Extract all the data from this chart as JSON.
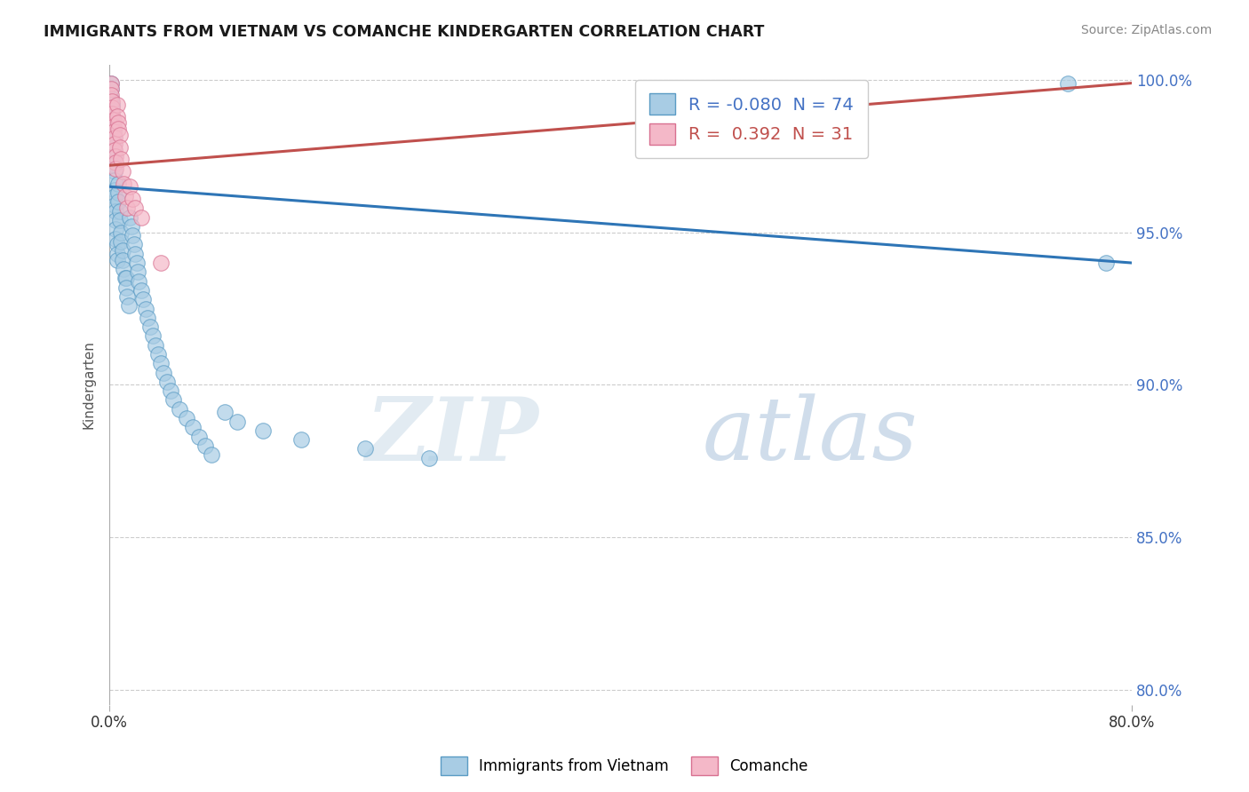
{
  "title": "IMMIGRANTS FROM VIETNAM VS COMANCHE KINDERGARTEN CORRELATION CHART",
  "source_text": "Source: ZipAtlas.com",
  "ylabel": "Kindergarten",
  "xlim": [
    0.0,
    0.8
  ],
  "ylim": [
    0.795,
    1.005
  ],
  "x_ticks": [
    0.0,
    0.8
  ],
  "x_tick_labels": [
    "0.0%",
    "80.0%"
  ],
  "y_ticks": [
    0.8,
    0.85,
    0.9,
    0.95,
    1.0
  ],
  "y_tick_labels": [
    "80.0%",
    "85.0%",
    "90.0%",
    "95.0%",
    "100.0%"
  ],
  "legend_r_blue": "-0.080",
  "legend_n_blue": "74",
  "legend_r_pink": "0.392",
  "legend_n_pink": "31",
  "blue_color": "#a8cce4",
  "pink_color": "#f4b8c8",
  "blue_edge_color": "#5a9bc4",
  "pink_edge_color": "#d87090",
  "blue_line_color": "#2e75b6",
  "pink_line_color": "#c0504d",
  "watermark_zip": "ZIP",
  "watermark_atlas": "atlas",
  "legend_label_blue": "Immigrants from Vietnam",
  "legend_label_pink": "Comanche",
  "blue_trend_x": [
    0.0,
    0.8
  ],
  "blue_trend_y": [
    0.965,
    0.94
  ],
  "pink_trend_x": [
    0.0,
    0.8
  ],
  "pink_trend_y": [
    0.972,
    0.999
  ],
  "blue_scatter_x": [
    0.001,
    0.001,
    0.001,
    0.002,
    0.002,
    0.002,
    0.002,
    0.003,
    0.003,
    0.003,
    0.003,
    0.003,
    0.004,
    0.004,
    0.004,
    0.004,
    0.004,
    0.005,
    0.005,
    0.005,
    0.005,
    0.006,
    0.006,
    0.006,
    0.007,
    0.007,
    0.007,
    0.008,
    0.008,
    0.009,
    0.009,
    0.01,
    0.01,
    0.011,
    0.012,
    0.013,
    0.013,
    0.014,
    0.015,
    0.016,
    0.017,
    0.018,
    0.019,
    0.02,
    0.021,
    0.022,
    0.023,
    0.025,
    0.026,
    0.028,
    0.03,
    0.032,
    0.034,
    0.036,
    0.038,
    0.04,
    0.042,
    0.045,
    0.048,
    0.05,
    0.055,
    0.06,
    0.065,
    0.07,
    0.075,
    0.08,
    0.09,
    0.1,
    0.12,
    0.15,
    0.2,
    0.25,
    0.75,
    0.78
  ],
  "blue_scatter_y": [
    0.999,
    0.997,
    0.994,
    0.992,
    0.99,
    0.988,
    0.986,
    0.984,
    0.982,
    0.978,
    0.975,
    0.972,
    0.97,
    0.967,
    0.964,
    0.962,
    0.959,
    0.957,
    0.954,
    0.951,
    0.948,
    0.946,
    0.943,
    0.941,
    0.966,
    0.963,
    0.96,
    0.957,
    0.954,
    0.95,
    0.947,
    0.944,
    0.941,
    0.938,
    0.935,
    0.935,
    0.932,
    0.929,
    0.926,
    0.955,
    0.952,
    0.949,
    0.946,
    0.943,
    0.94,
    0.937,
    0.934,
    0.931,
    0.928,
    0.925,
    0.922,
    0.919,
    0.916,
    0.913,
    0.91,
    0.907,
    0.904,
    0.901,
    0.898,
    0.895,
    0.892,
    0.889,
    0.886,
    0.883,
    0.88,
    0.877,
    0.891,
    0.888,
    0.885,
    0.882,
    0.879,
    0.876,
    0.999,
    0.94
  ],
  "pink_scatter_x": [
    0.001,
    0.001,
    0.001,
    0.002,
    0.002,
    0.002,
    0.003,
    0.003,
    0.003,
    0.004,
    0.004,
    0.004,
    0.005,
    0.005,
    0.005,
    0.006,
    0.006,
    0.007,
    0.007,
    0.008,
    0.008,
    0.009,
    0.01,
    0.011,
    0.012,
    0.014,
    0.016,
    0.018,
    0.02,
    0.025,
    0.04
  ],
  "pink_scatter_y": [
    0.999,
    0.997,
    0.995,
    0.993,
    0.991,
    0.989,
    0.987,
    0.985,
    0.983,
    0.981,
    0.979,
    0.977,
    0.975,
    0.973,
    0.971,
    0.992,
    0.988,
    0.986,
    0.984,
    0.982,
    0.978,
    0.974,
    0.97,
    0.966,
    0.962,
    0.958,
    0.965,
    0.961,
    0.958,
    0.955,
    0.94
  ]
}
